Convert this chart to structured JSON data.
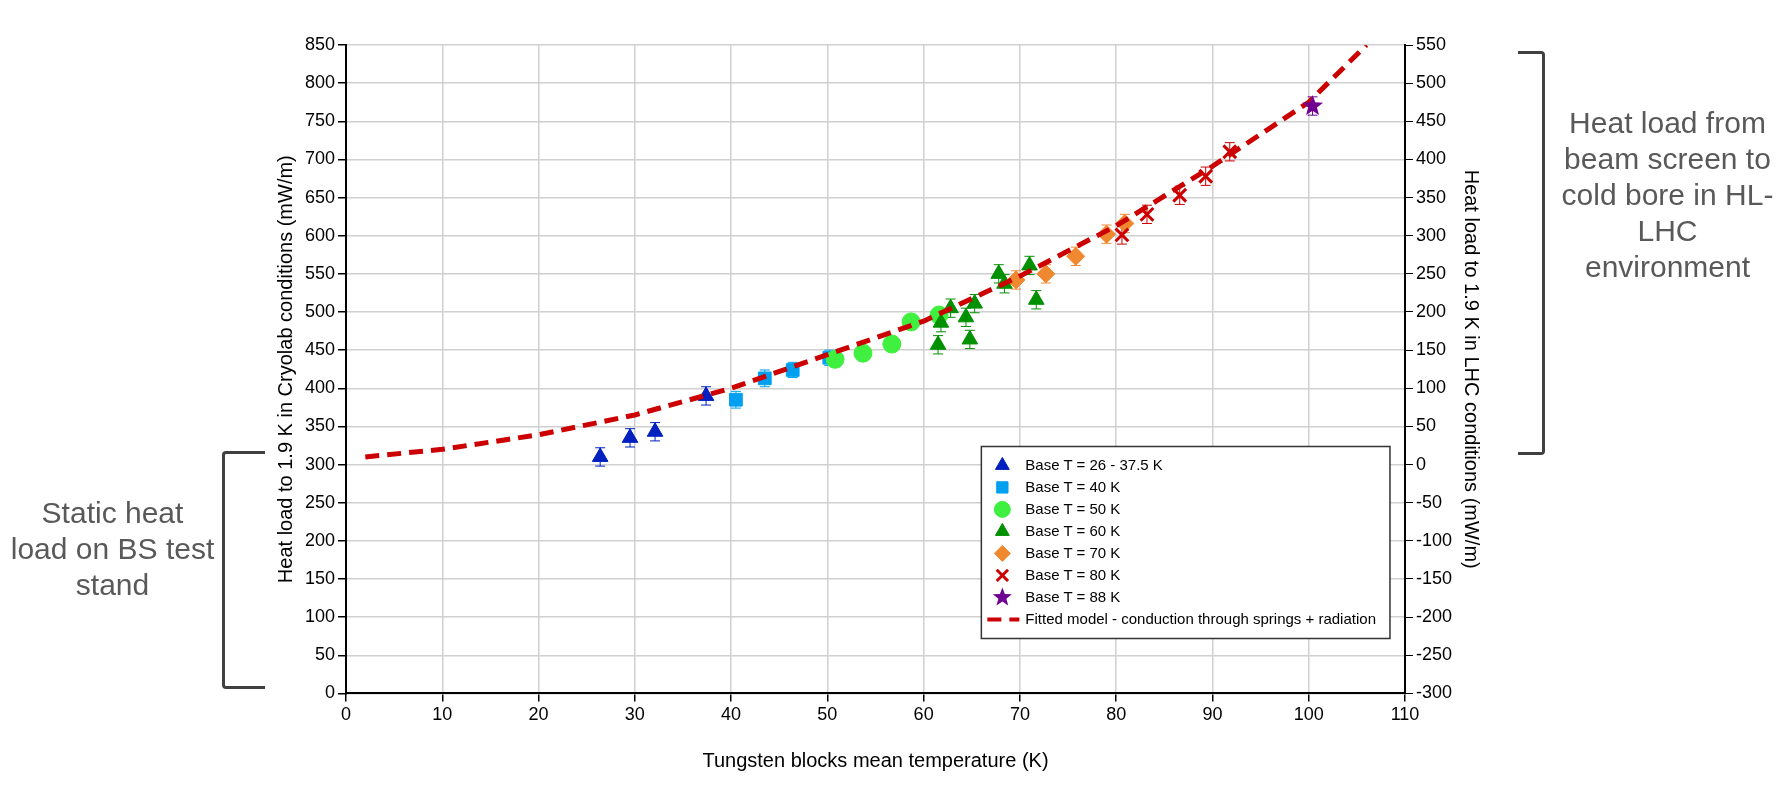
{
  "chart_data": {
    "type": "scatter",
    "xlabel": "Tungsten blocks mean temperature (K)",
    "ylabel": "Heat load to 1.9 K in Cryolab conditions (mW/m)",
    "y2label": "Heat load to 1.9 K in LHC conditions (mW/m)",
    "xlim": [
      0,
      110
    ],
    "xticks": [
      0,
      10,
      20,
      30,
      40,
      50,
      60,
      70,
      80,
      90,
      100,
      110
    ],
    "ylim": [
      0,
      850
    ],
    "yticks": [
      0,
      50,
      100,
      150,
      200,
      250,
      300,
      350,
      400,
      450,
      500,
      550,
      600,
      650,
      700,
      750,
      800,
      850
    ],
    "y2lim": [
      -300,
      550
    ],
    "y2ticks": [
      -300,
      -250,
      -200,
      -150,
      -100,
      -50,
      0,
      50,
      100,
      150,
      200,
      250,
      300,
      350,
      400,
      450,
      500,
      550
    ],
    "grid": true,
    "legend": "bottom right",
    "annotations": [
      "Static heat load on BS test stand",
      "Heat load from beam screen to cold bore in HL-LHC environment"
    ],
    "series": [
      {
        "name": "Base T = 26 - 37.5 K",
        "color": "#0020c0",
        "marker": "triangle",
        "x": [
          26.4,
          29.5,
          32.1,
          37.4
        ],
        "values": [
          310,
          335,
          343,
          390
        ],
        "errors": [
          12,
          12,
          12,
          12
        ]
      },
      {
        "name": "Base T = 40 K",
        "color": "#00a0f0",
        "marker": "square",
        "x": [
          40.5,
          43.5,
          46.4,
          50.2
        ],
        "values": [
          385,
          413,
          424,
          440
        ],
        "errors": [
          11,
          11,
          10,
          10
        ]
      },
      {
        "name": "Base T = 50 K",
        "color": "#40f040",
        "marker": "circle",
        "x": [
          50.8,
          53.7,
          56.7,
          58.7,
          61.6
        ],
        "values": [
          438,
          446,
          458,
          487,
          496
        ],
        "errors": [
          10,
          10,
          10,
          10,
          10
        ]
      },
      {
        "name": "Base T = 60 K",
        "color": "#009000",
        "marker": "triangle",
        "x": [
          61.5,
          61.8,
          62.8,
          64.4,
          64.8,
          65.3,
          67.8,
          68.4,
          71.0,
          71.7
        ],
        "values": [
          457,
          486,
          505,
          493,
          464,
          511,
          550,
          537,
          561,
          516
        ],
        "errors": [
          12,
          12,
          12,
          12,
          12,
          12,
          12,
          12,
          12,
          12
        ]
      },
      {
        "name": "Base T = 70 K",
        "color": "#f08830",
        "marker": "diamond",
        "x": [
          69.6,
          72.7,
          75.8,
          79.0,
          80.9
        ],
        "values": [
          542,
          550,
          573,
          602,
          616
        ],
        "errors": [
          12,
          12,
          12,
          12,
          12
        ]
      },
      {
        "name": "Base T = 80 K",
        "color": "#cc0000",
        "marker": "cross",
        "x": [
          80.6,
          83.2,
          86.6,
          89.3,
          91.8
        ],
        "values": [
          601,
          628,
          653,
          678,
          710
        ],
        "errors": [
          12,
          12,
          12,
          12,
          12
        ]
      },
      {
        "name": "Base T = 88 K",
        "color": "#700090",
        "marker": "star",
        "x": [
          100.4
        ],
        "values": [
          770
        ],
        "errors": [
          12
        ]
      },
      {
        "name": "Fitted model - conduction through springs + radiation",
        "type": "line",
        "color": "#cc0000",
        "marker": "none",
        "line_style": "dashed",
        "x": [
          2,
          10,
          20,
          30,
          40,
          50,
          60,
          70,
          80,
          90,
          100,
          106
        ],
        "values": [
          310,
          320,
          339,
          365,
          400,
          444,
          488,
          547,
          613,
          691,
          775,
          850
        ]
      }
    ]
  }
}
